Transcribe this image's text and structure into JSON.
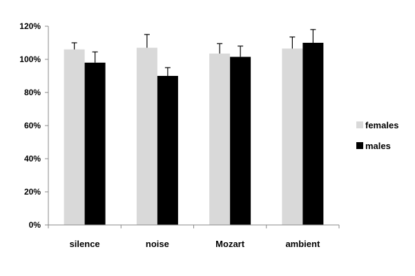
{
  "chart_data": {
    "type": "bar",
    "title": "",
    "xlabel": "",
    "ylabel": "",
    "categories": [
      "silence",
      "noise",
      "Mozart",
      "ambient"
    ],
    "series": [
      {
        "name": "females",
        "color": "#d9d9d9",
        "values": [
          106,
          107,
          103.5,
          106.5
        ],
        "error": [
          4,
          8,
          6,
          7
        ]
      },
      {
        "name": "males",
        "color": "#000000",
        "values": [
          98,
          90,
          101.5,
          110
        ],
        "error": [
          6.5,
          5,
          6.5,
          8
        ]
      }
    ],
    "ylim": [
      0,
      120
    ],
    "yticks": [
      0,
      20,
      40,
      60,
      80,
      100,
      120
    ],
    "ytick_labels": [
      "0%",
      "20%",
      "40%",
      "60%",
      "80%",
      "100%",
      "120%"
    ],
    "grid": false,
    "legend": "right"
  }
}
